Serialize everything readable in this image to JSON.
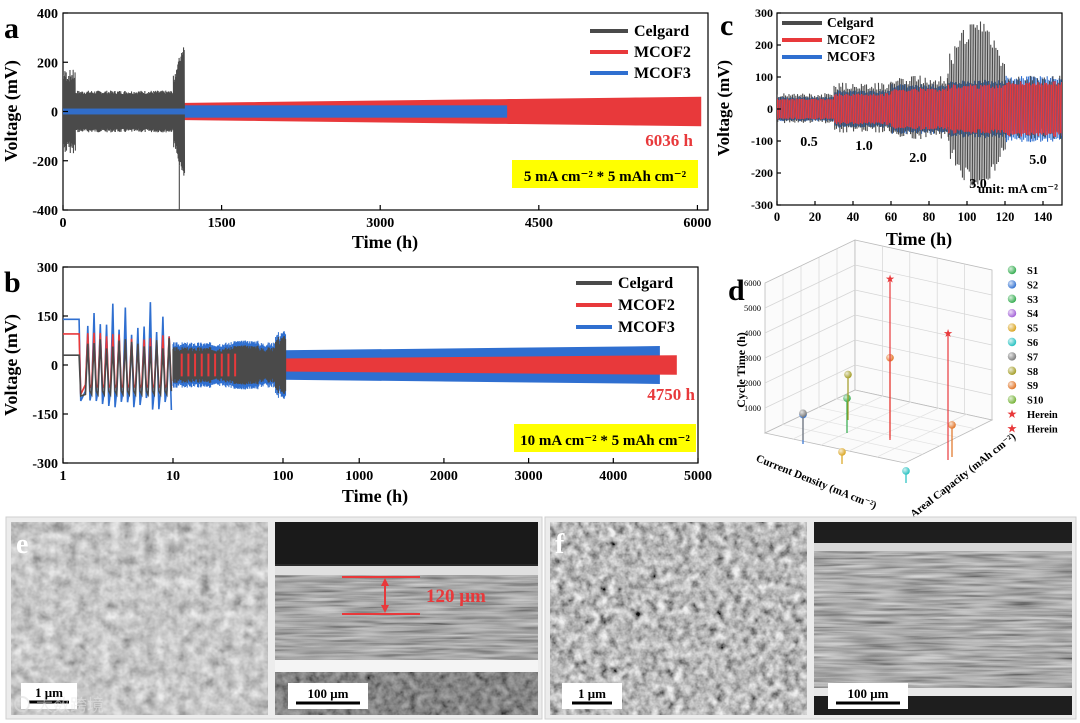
{
  "panels": {
    "a": {
      "letter": "a",
      "cond": "5 mA cm⁻² * 5 mAh cm⁻²",
      "annot": "6036 h"
    },
    "b": {
      "letter": "b",
      "cond": "10 mA cm⁻² * 5 mAh cm⁻²",
      "annot": "4750 h"
    },
    "c": {
      "letter": "c",
      "density_labels": [
        "0.5",
        "1.0",
        "2.0",
        "3.0",
        "5.0"
      ],
      "unit": "unit: mA cm⁻²"
    },
    "d": {
      "letter": "d",
      "xlabel": "Current Density (mA cm⁻²)",
      "ylabel": "Areal Capacity (mAh cm⁻²)",
      "zlabel": "Cycle Time (h)",
      "zticks": [
        "1000",
        "2000",
        "3000",
        "4000",
        "5000",
        "6000"
      ]
    },
    "e": {
      "letter": "e",
      "scale_left": "1 μm",
      "scale_right": "100 μm",
      "thickness": "120 μm"
    },
    "f": {
      "letter": "f",
      "scale_left": "1 μm",
      "scale_right": "100 μm"
    }
  },
  "watermark": "大数跨境",
  "colors": {
    "Celgard": "#4a4a4a",
    "MCOF2": "#e8393b",
    "MCOF3": "#2f6fd0",
    "highlight": "#ffff00",
    "annot": "#e8393b"
  },
  "chart_data": [
    {
      "id": "a",
      "type": "line",
      "xlabel": "Time (h)",
      "ylabel": "Voltage (mV)",
      "xlim": [
        0,
        6100
      ],
      "ylim": [
        -400,
        400
      ],
      "xticks": [
        0,
        1500,
        3000,
        4500,
        6000
      ],
      "yticks": [
        -400,
        -200,
        0,
        200,
        400
      ],
      "legend_position": "top-right",
      "series": [
        {
          "name": "Celgard",
          "end_time_h": 1150,
          "amplitude_mV": [
            70,
            260
          ]
        },
        {
          "name": "MCOF2",
          "end_time_h": 6036,
          "amplitude_mV": [
            30,
            60
          ]
        },
        {
          "name": "MCOF3",
          "end_time_h": 4200,
          "amplitude_mV": [
            25,
            25
          ]
        }
      ]
    },
    {
      "id": "b",
      "type": "line",
      "xlabel": "Time (h)",
      "ylabel": "Voltage (mV)",
      "xscale": "log (1–100) then linear (100–5000)",
      "ylim": [
        -300,
        300
      ],
      "xticks": [
        1,
        10,
        100,
        1000,
        2000,
        3000,
        4000,
        5000
      ],
      "yticks": [
        -300,
        -150,
        0,
        150,
        300
      ],
      "legend_position": "top-right",
      "series": [
        {
          "name": "Celgard",
          "end_time_h": 130,
          "amplitude_mV": [
            40,
            90
          ]
        },
        {
          "name": "MCOF2",
          "end_time_h": 4750,
          "amplitude_mV": [
            25,
            40
          ]
        },
        {
          "name": "MCOF3",
          "end_time_h": 4550,
          "amplitude_mV": [
            20,
            60
          ]
        }
      ]
    },
    {
      "id": "c",
      "type": "line",
      "xlabel": "Time (h)",
      "ylabel": "Voltage (mV)",
      "xlim": [
        0,
        150
      ],
      "ylim": [
        -300,
        300
      ],
      "xticks": [
        0,
        20,
        40,
        60,
        80,
        100,
        120,
        140
      ],
      "yticks": [
        -300,
        -200,
        -100,
        0,
        100,
        200,
        300
      ],
      "legend_position": "top-left",
      "steps": [
        {
          "current_density": 0.5,
          "t": [
            0,
            30
          ],
          "Celgard_mV": 45,
          "MCOF2_mV": 30
        },
        {
          "current_density": 1.0,
          "t": [
            30,
            60
          ],
          "Celgard_mV": 75,
          "MCOF2_mV": 45
        },
        {
          "current_density": 2.0,
          "t": [
            60,
            90
          ],
          "Celgard_mV": 95,
          "MCOF2_mV": 60
        },
        {
          "current_density": 3.0,
          "t": [
            90,
            120
          ],
          "Celgard_mV": 220,
          "MCOF2_mV": 70
        },
        {
          "current_density": 5.0,
          "t": [
            120,
            150
          ],
          "Celgard_mV": 110,
          "MCOF2_mV": 80
        }
      ],
      "series": [
        {
          "name": "Celgard"
        },
        {
          "name": "MCOF2"
        },
        {
          "name": "MCOF3"
        }
      ]
    },
    {
      "id": "d",
      "type": "scatter",
      "zlabel": "Cycle Time (h)",
      "zlim": [
        0,
        6000
      ],
      "legend": [
        "S1",
        "S2",
        "S3",
        "S4",
        "S5",
        "S6",
        "S7",
        "S8",
        "S9",
        "S10",
        "Herein",
        "Herein"
      ],
      "legend_colors": [
        "#2eaa4a",
        "#2f6fd0",
        "#2eaa4a",
        "#a05cd6",
        "#d9a21a",
        "#1fbfbf",
        "#777777",
        "#a09a20",
        "#e07020",
        "#70b030",
        "#e8393b",
        "#e8393b"
      ],
      "points": [
        {
          "label": "S2",
          "cycle_time_h": 1100
        },
        {
          "label": "S7",
          "cycle_time_h": 1000
        },
        {
          "label": "S5",
          "cycle_time_h": 450
        },
        {
          "label": "S3",
          "cycle_time_h": 1300
        },
        {
          "label": "S8",
          "cycle_time_h": 1700
        },
        {
          "label": "S9",
          "cycle_time_h": 3000
        },
        {
          "label": "S6",
          "cycle_time_h": 450
        },
        {
          "label": "S9",
          "cycle_time_h": 1200
        },
        {
          "label": "Herein",
          "cycle_time_h": 6036
        },
        {
          "label": "Herein",
          "cycle_time_h": 4750
        }
      ]
    }
  ]
}
